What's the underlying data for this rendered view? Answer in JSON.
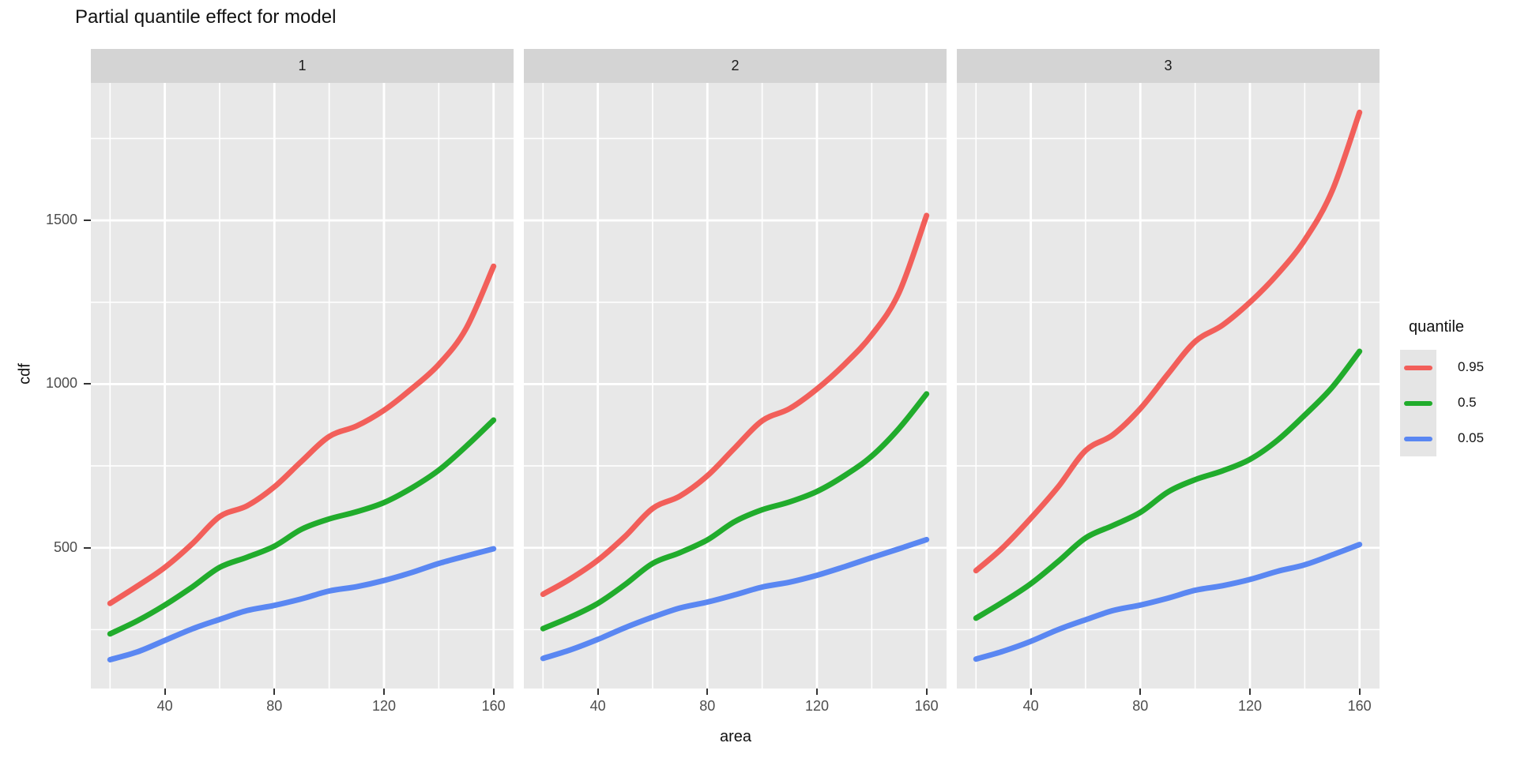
{
  "title": "Partial quantile effect for model",
  "axes": {
    "x_label": "area",
    "y_label": "cdf",
    "x_ticks": [
      40,
      80,
      120,
      160
    ],
    "y_ticks": [
      500,
      1000,
      1500
    ],
    "x_minor": [
      20,
      60,
      100,
      140
    ],
    "y_minor": [
      250,
      750,
      1250,
      1750
    ],
    "x_range": [
      13,
      167.3
    ],
    "y_range": [
      70,
      1920
    ]
  },
  "legend": {
    "title": "quantile",
    "entries": [
      {
        "label": "0.95",
        "color": "#f25f5a"
      },
      {
        "label": "0.5",
        "color": "#21ac2c"
      },
      {
        "label": "0.05",
        "color": "#5a87f2"
      }
    ]
  },
  "theme": {
    "panel_bg": "#e8e8e8",
    "strip_bg": "#d4d4d4",
    "grid_color": "#ffffff",
    "legend_key_bg": "#e5e5e5",
    "line_width": 7
  },
  "chart_data": {
    "type": "line",
    "title": "Partial quantile effect for model",
    "xlabel": "area",
    "ylabel": "cdf",
    "legend_title": "quantile",
    "legend_position": "right",
    "grid": true,
    "xlim": [
      13,
      167.3
    ],
    "ylim": [
      70,
      1920
    ],
    "x": [
      20,
      30,
      40,
      50,
      60,
      70,
      80,
      90,
      100,
      110,
      120,
      130,
      140,
      150,
      160
    ],
    "facets": [
      {
        "label": "1",
        "series": [
          {
            "name": "0.95",
            "color": "#f25f5a",
            "values": [
              330,
              383,
              440,
              512,
              595,
              628,
              686,
              765,
              840,
              872,
              920,
              985,
              1060,
              1170,
              1360
            ]
          },
          {
            "name": "0.5",
            "color": "#21ac2c",
            "values": [
              237,
              277,
              325,
              380,
              440,
              471,
              505,
              557,
              588,
              610,
              638,
              682,
              737,
              810,
              890
            ]
          },
          {
            "name": "0.05",
            "color": "#5a87f2",
            "values": [
              158,
              182,
              217,
              252,
              281,
              308,
              324,
              344,
              368,
              381,
              400,
              424,
              452,
              475,
              497
            ]
          }
        ]
      },
      {
        "label": "2",
        "series": [
          {
            "name": "0.95",
            "color": "#f25f5a",
            "values": [
              358,
              405,
              462,
              535,
              620,
              658,
              720,
              805,
              888,
              925,
              985,
              1060,
              1150,
              1280,
              1515
            ]
          },
          {
            "name": "0.5",
            "color": "#21ac2c",
            "values": [
              253,
              288,
              330,
              388,
              452,
              485,
              524,
              580,
              616,
              640,
              672,
              720,
              780,
              865,
              970
            ]
          },
          {
            "name": "0.05",
            "color": "#5a87f2",
            "values": [
              162,
              188,
              220,
              256,
              288,
              316,
              334,
              356,
              380,
              395,
              416,
              442,
              470,
              497,
              525
            ]
          }
        ]
      },
      {
        "label": "3",
        "series": [
          {
            "name": "0.95",
            "color": "#f25f5a",
            "values": [
              430,
              502,
              590,
              686,
              797,
              845,
              925,
              1030,
              1130,
              1180,
              1250,
              1335,
              1440,
              1590,
              1830
            ]
          },
          {
            "name": "0.5",
            "color": "#21ac2c",
            "values": [
              285,
              335,
              390,
              458,
              530,
              568,
              608,
              670,
              708,
              735,
              770,
              828,
              905,
              990,
              1100
            ]
          },
          {
            "name": "0.05",
            "color": "#5a87f2",
            "values": [
              160,
              184,
              214,
              250,
              280,
              308,
              325,
              346,
              370,
              384,
              403,
              428,
              448,
              478,
              510
            ]
          }
        ]
      }
    ]
  }
}
